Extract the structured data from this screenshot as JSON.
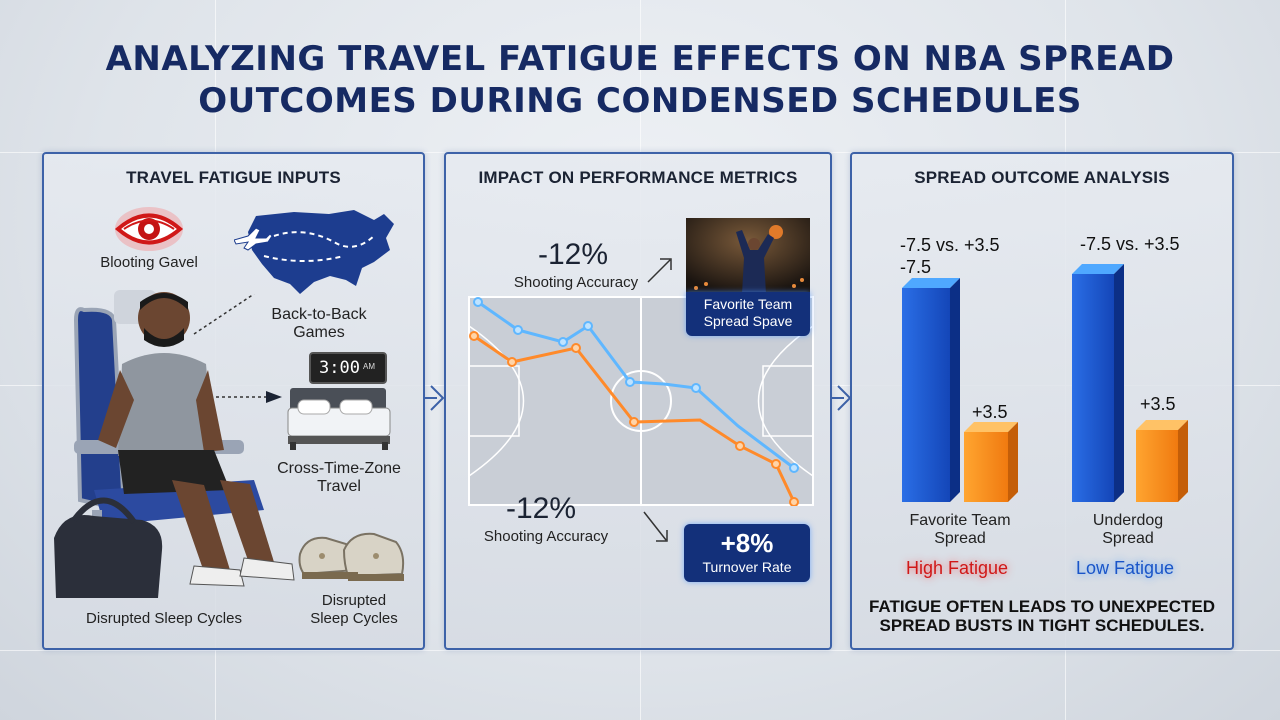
{
  "title_line1": "ANALYZING TRAVEL FATIGUE EFFECTS ON NBA SPREAD",
  "title_line2": "OUTCOMES DURING CONDENSED SCHEDULES",
  "panels": {
    "inputs": {
      "title": "TRAVEL FATIGUE INPUTS",
      "eye_label": "Blooting Gavel",
      "b2b_label_1": "Back-to-Back",
      "b2b_label_2": "Games",
      "clock_text": "3:00",
      "clock_suffix": "AM",
      "ctz_label_1": "Cross-Time-Zone",
      "ctz_label_2": "Travel",
      "sleep_label": "Disrupted Sleep Cycles",
      "sleep2_label_1": "Disrupted",
      "sleep2_label_2": "Sleep Cycles"
    },
    "impact": {
      "title": "IMPACT ON PERFORMANCE METRICS",
      "top_pct": "-12%",
      "top_metric": "Shooting Accuracy",
      "bottom_pct": "-12%",
      "bottom_metric": "Shooting Accuracy",
      "photo_badge_1": "Favorite Team",
      "photo_badge_2": "Spread Spave",
      "turnover_pct": "+8%",
      "turnover_label": "Turnover Rate",
      "line_colors": {
        "blue": "#5fb7ff",
        "orange": "#ff8a2a"
      }
    },
    "spread": {
      "title": "SPREAD OUTCOME ANALYSIS",
      "fav_top_1": "-7.5 vs. +3.5",
      "fav_top_2": "-7.5",
      "fav_small": "+3.5",
      "fav_label_1": "Favorite Team",
      "fav_label_2": "Spread",
      "dog_top_1": "-7.5 vs. +3.5",
      "dog_small": "+3.5",
      "dog_label_1": "Underdog",
      "dog_label_2": "Spread",
      "high_fatigue": "High Fatigue",
      "low_fatigue": "Low Fatigue",
      "note_line1": "FATIGUE OFTEN LEADS TO UNEXPECTED",
      "note_line2": "SPREAD BUSTS IN TIGHT SCHEDULES."
    }
  }
}
